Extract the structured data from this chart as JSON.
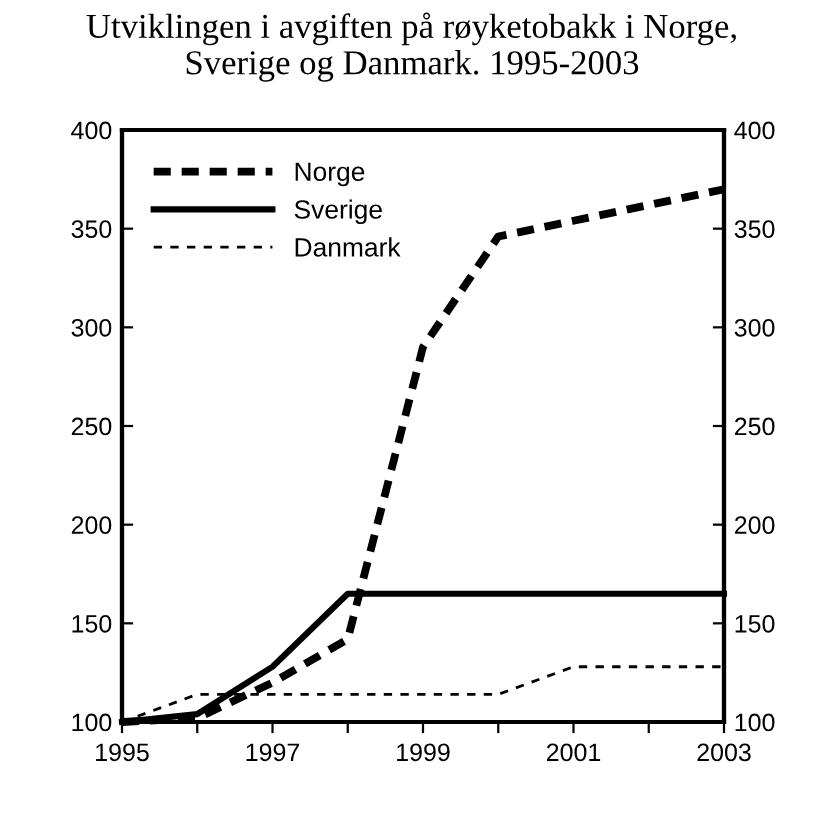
{
  "chart_data": {
    "type": "line",
    "title": "Utviklingen i avgiften på røyketobakk i Norge,\nSverige og Danmark. 1995-2003",
    "x": [
      1995,
      1996,
      1997,
      1998,
      1999,
      2000,
      2001,
      2002,
      2003
    ],
    "series": [
      {
        "name": "Norge",
        "color": "#000000",
        "line_style": "dashed",
        "values": [
          100,
          102,
          120,
          142,
          290,
          346,
          354,
          362,
          370
        ]
      },
      {
        "name": "Sverige",
        "color": "#000000",
        "line_style": "solid",
        "values": [
          100,
          104,
          128,
          165,
          165,
          165,
          165,
          165,
          165
        ]
      },
      {
        "name": "Danmark",
        "color": "#000000",
        "line_style": "dotted",
        "values": [
          100,
          114,
          114,
          114,
          114,
          114,
          128,
          128,
          128
        ]
      }
    ],
    "xlim": [
      1995,
      2003
    ],
    "xticks": [
      1995,
      {
        "value": 1996,
        "label": null
      },
      1997,
      {
        "value": 1998,
        "label": null
      },
      1999,
      {
        "value": 2000,
        "label": null
      },
      2001,
      {
        "value": 2002,
        "label": null
      },
      2003
    ],
    "ylim": [
      100,
      400
    ],
    "yticks": [
      100,
      150,
      200,
      250,
      300,
      350,
      400
    ],
    "y2lim": [
      100,
      400
    ],
    "y2ticks": [
      100,
      150,
      200,
      250,
      300,
      350,
      400
    ],
    "grid": false,
    "legend": "top left",
    "marker": "none"
  }
}
